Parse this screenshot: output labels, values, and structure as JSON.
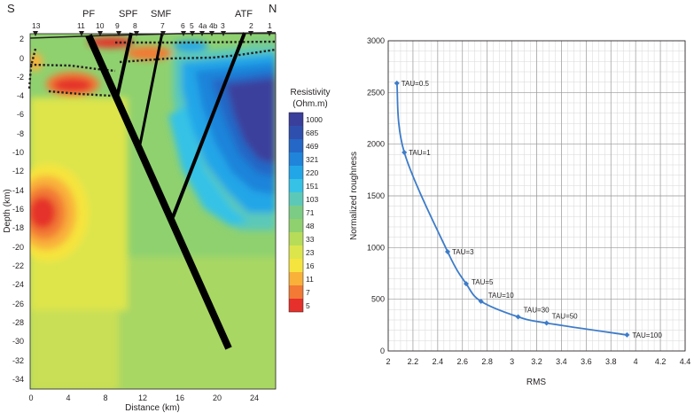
{
  "section": {
    "south_label": "S",
    "north_label": "N",
    "faults": [
      "PF",
      "SPF",
      "SMF",
      "ATF"
    ],
    "stations": [
      "13",
      "11",
      "10",
      "9",
      "8",
      "7",
      "6",
      "5",
      "4a",
      "4b",
      "3",
      "2",
      "1"
    ],
    "y_axis_label": "Depth (km)",
    "x_axis_label": "Distance (km)",
    "y_ticks": [
      "2",
      "0",
      "-2",
      "-4",
      "-6",
      "-8",
      "-10",
      "-12",
      "-14",
      "-16",
      "-18",
      "-20",
      "-22",
      "-24",
      "-26",
      "-28",
      "-30",
      "-32",
      "-34"
    ],
    "x_ticks": [
      "0",
      "4",
      "8",
      "12",
      "16",
      "20",
      "24"
    ],
    "legend_title_1": "Resistivity",
    "legend_title_2": "(Ohm.m)",
    "legend_values": [
      "1000",
      "685",
      "469",
      "321",
      "220",
      "151",
      "103",
      "71",
      "48",
      "33",
      "23",
      "16",
      "11",
      "7",
      "5"
    ],
    "legend_colors": [
      "#3a3f9c",
      "#2f4fae",
      "#2467c6",
      "#1f84da",
      "#23a6e8",
      "#35c2e6",
      "#5cc9b8",
      "#7ccc86",
      "#8fd16f",
      "#b7dc59",
      "#dde54c",
      "#f6e43e",
      "#f9b13a",
      "#f27a35",
      "#e5302b"
    ]
  },
  "chart_data": {
    "type": "line",
    "title": "",
    "xlabel": "RMS",
    "ylabel": "Normalized roughness",
    "xlim": [
      2,
      4.4
    ],
    "ylim": [
      0,
      3000
    ],
    "x_ticks": [
      "2",
      "2.2",
      "2.4",
      "2.6",
      "2.8",
      "3",
      "3.2",
      "3.4",
      "3.6",
      "3.8",
      "4",
      "4.2",
      "4.4"
    ],
    "y_ticks": [
      "0",
      "500",
      "1000",
      "1500",
      "2000",
      "2500",
      "3000"
    ],
    "grid": true,
    "series": [
      {
        "x": [
          2.07,
          2.13,
          2.48,
          2.63,
          2.75,
          3.05,
          3.28,
          3.93
        ],
        "y": [
          2590,
          1920,
          960,
          650,
          480,
          330,
          270,
          155
        ]
      }
    ],
    "point_labels": [
      "TAU=0.5",
      "TAU=1",
      "TAU=3",
      "TAU=5",
      "TAU=10",
      "TAU=30",
      "TAU=50",
      "TAU=100"
    ],
    "line_color": "#3d7cc9"
  }
}
